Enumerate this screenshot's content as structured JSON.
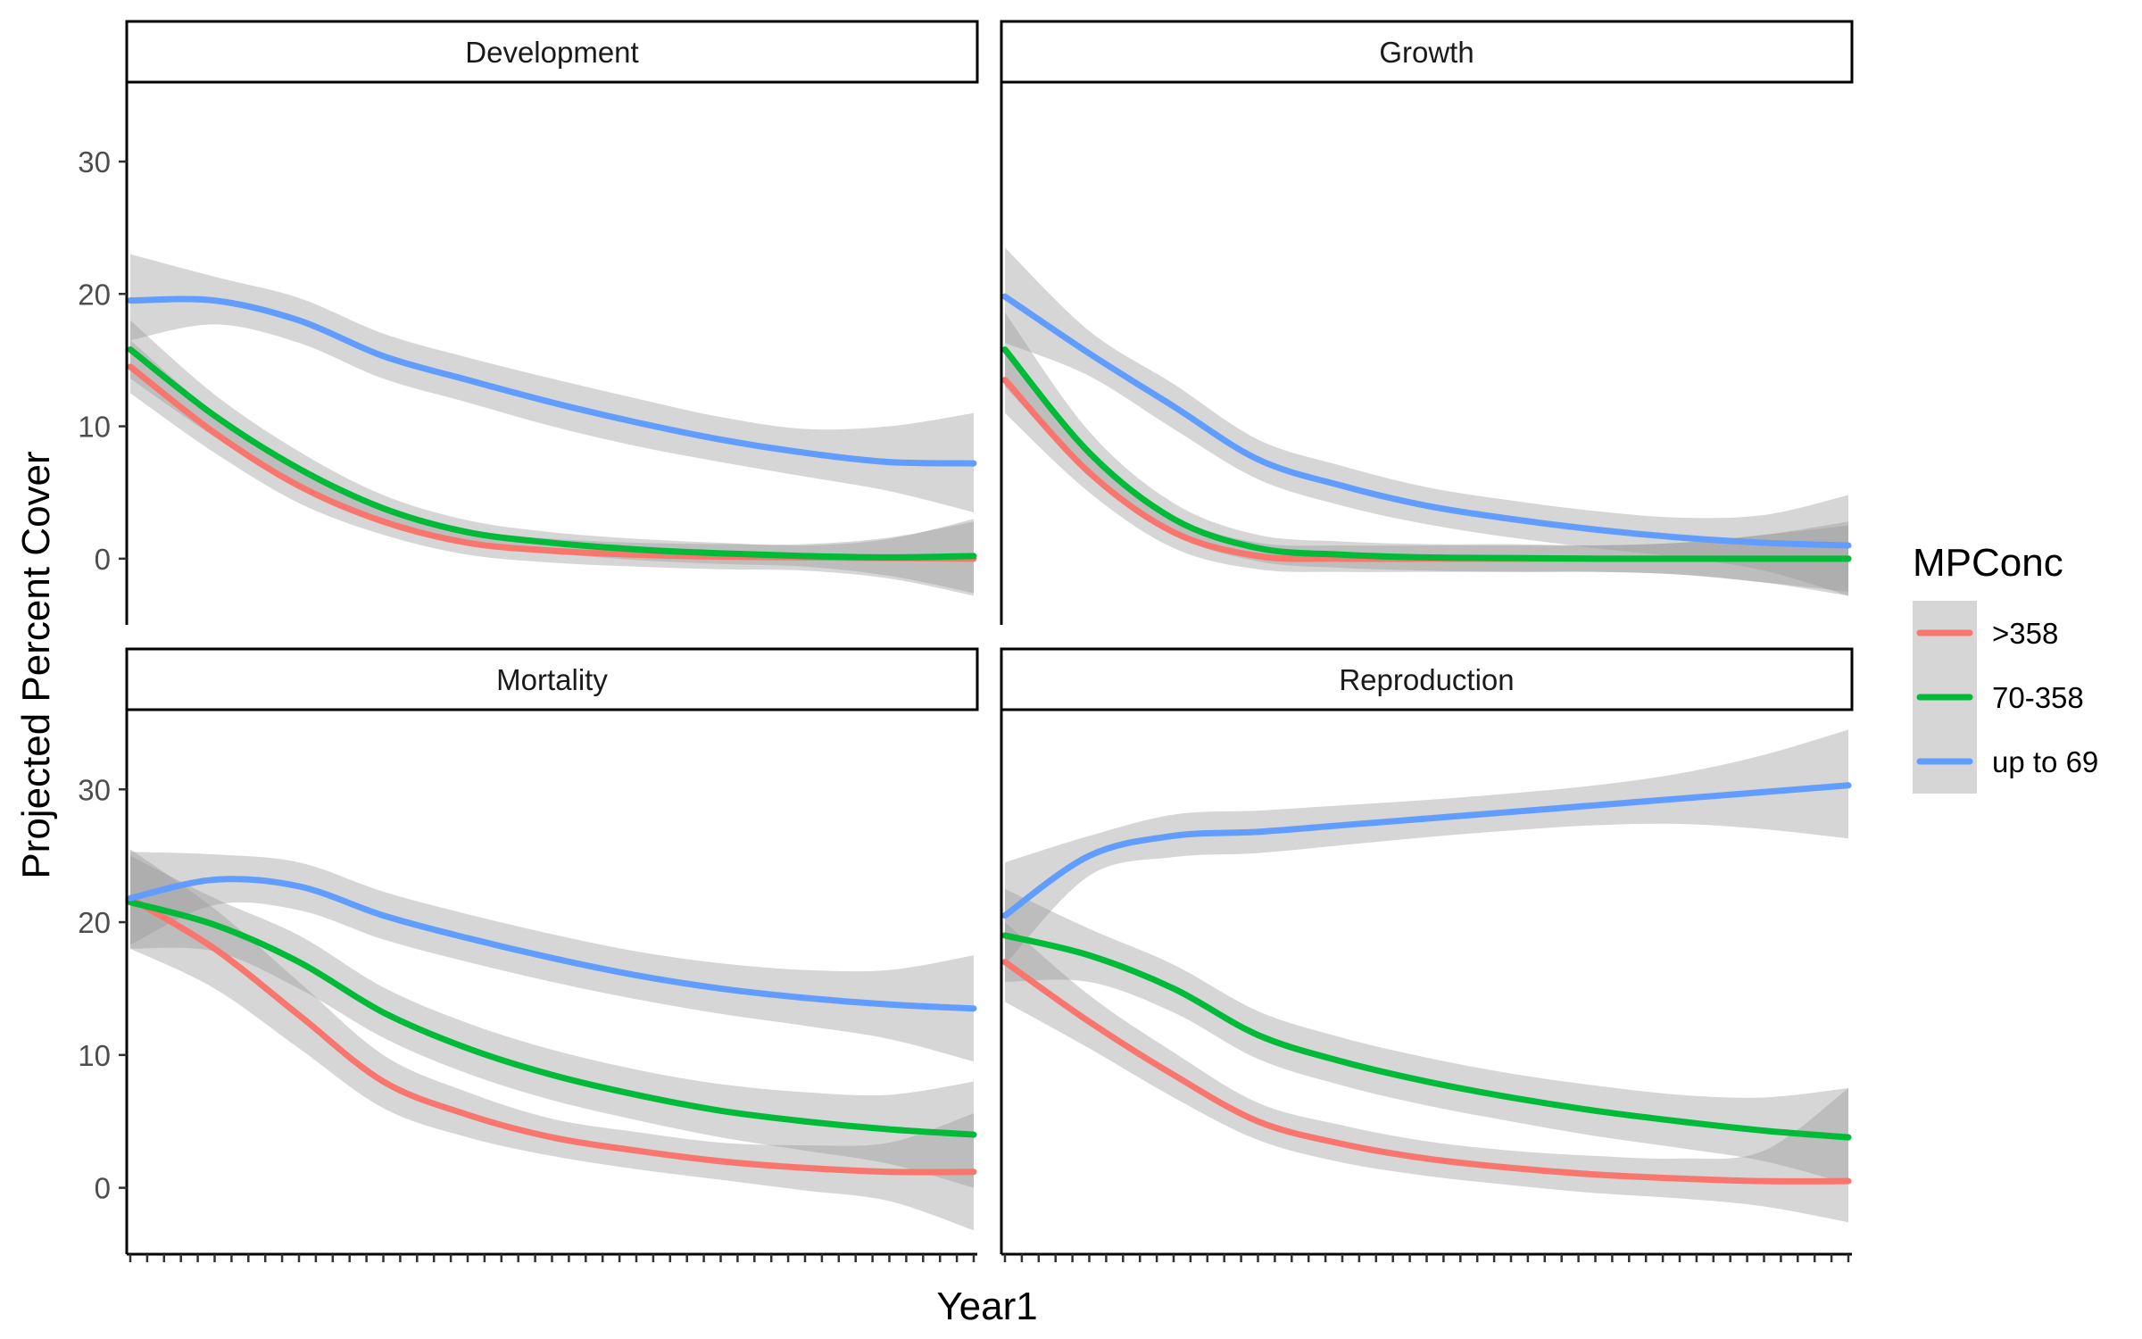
{
  "chart_data": {
    "type": "line",
    "facets": [
      "Development",
      "Growth",
      "Mortality",
      "Reproduction"
    ],
    "xlabel": "Year1",
    "ylabel": "Projected Percent Cover",
    "yticks": [
      0,
      10,
      20,
      30
    ],
    "ylim": [
      -5,
      36
    ],
    "xlim": [
      0,
      1
    ],
    "x_tick_count": 51,
    "grid": false,
    "legend": {
      "title": "MPConc",
      "placement": "right",
      "entries": [
        ">358",
        "70-358",
        "up to 69"
      ]
    },
    "colors": {
      ">358": "#F8766D",
      "70-358": "#00BA38",
      "up to 69": "#619CFF",
      "band": "#999999"
    },
    "panels": [
      {
        "facet": "Development",
        "series": [
          {
            "name": ">358",
            "x": [
              0,
              0.1,
              0.2,
              0.3,
              0.4,
              0.5,
              0.6,
              0.7,
              0.8,
              0.9,
              1.0
            ],
            "y": [
              14.5,
              9.5,
              5.5,
              2.8,
              1.2,
              0.6,
              0.3,
              0.15,
              0.1,
              0.05,
              0.0
            ],
            "lower": [
              12.5,
              8,
              4.2,
              1.8,
              0.3,
              -0.3,
              -0.6,
              -0.8,
              -0.9,
              -1.5,
              -2.8
            ],
            "upper": [
              16.5,
              11,
              6.8,
              3.8,
              2.1,
              1.5,
              1.2,
              1.1,
              1.1,
              1.6,
              2.8
            ]
          },
          {
            "name": "70-358",
            "x": [
              0,
              0.1,
              0.2,
              0.3,
              0.4,
              0.5,
              0.6,
              0.7,
              0.8,
              0.9,
              1.0
            ],
            "y": [
              15.8,
              10.8,
              6.8,
              3.8,
              2.0,
              1.2,
              0.7,
              0.4,
              0.2,
              0.1,
              0.2
            ],
            "lower": [
              13.6,
              9.2,
              5.5,
              2.8,
              1.1,
              0.4,
              -0.1,
              -0.4,
              -0.6,
              -1.3,
              -2.6
            ],
            "upper": [
              18.0,
              12.4,
              8.1,
              4.8,
              2.9,
              2.0,
              1.5,
              1.2,
              1.0,
              1.5,
              3.0
            ]
          },
          {
            "name": "up to 69",
            "x": [
              0,
              0.1,
              0.2,
              0.3,
              0.4,
              0.5,
              0.6,
              0.7,
              0.8,
              0.9,
              1.0
            ],
            "y": [
              19.5,
              19.5,
              18.0,
              15.3,
              13.5,
              11.8,
              10.3,
              9.0,
              8.0,
              7.3,
              7.2
            ],
            "lower": [
              16.5,
              17.7,
              16.3,
              13.6,
              11.8,
              10.0,
              8.5,
              7.3,
              6.2,
              5.1,
              3.5
            ],
            "upper": [
              23.0,
              21.3,
              19.7,
              17.0,
              15.2,
              13.6,
              12.1,
              10.7,
              9.8,
              10.0,
              11.0
            ]
          }
        ]
      },
      {
        "facet": "Growth",
        "series": [
          {
            "name": ">358",
            "x": [
              0,
              0.1,
              0.2,
              0.3,
              0.4,
              0.5,
              0.6,
              0.7,
              0.8,
              0.9,
              1.0
            ],
            "y": [
              13.5,
              6.5,
              2.0,
              0.2,
              0.0,
              0.0,
              0.0,
              0.0,
              0.0,
              0.0,
              0.0
            ],
            "lower": [
              11.0,
              5.0,
              0.8,
              -0.8,
              -1.0,
              -1.0,
              -1.0,
              -1.0,
              -1.2,
              -1.8,
              -2.5
            ],
            "upper": [
              16.0,
              8.0,
              3.2,
              1.2,
              1.0,
              1.0,
              1.0,
              1.0,
              1.2,
              1.8,
              2.5
            ]
          },
          {
            "name": "70-358",
            "x": [
              0,
              0.1,
              0.2,
              0.3,
              0.4,
              0.5,
              0.6,
              0.7,
              0.8,
              0.9,
              1.0
            ],
            "y": [
              15.8,
              8.0,
              3.0,
              0.8,
              0.3,
              0.1,
              0.05,
              0.0,
              0.0,
              0.0,
              0.0
            ],
            "lower": [
              13.0,
              6.4,
              1.8,
              -0.2,
              -0.7,
              -0.9,
              -1.0,
              -1.0,
              -1.2,
              -1.8,
              -2.8
            ],
            "upper": [
              18.6,
              9.6,
              4.2,
              1.8,
              1.3,
              1.1,
              1.1,
              1.0,
              1.2,
              1.8,
              2.8
            ]
          },
          {
            "name": "up to 69",
            "x": [
              0,
              0.1,
              0.2,
              0.3,
              0.4,
              0.5,
              0.6,
              0.7,
              0.8,
              0.9,
              1.0
            ],
            "y": [
              19.8,
              15.5,
              11.5,
              7.5,
              5.5,
              4.0,
              3.0,
              2.2,
              1.6,
              1.2,
              1.0
            ],
            "lower": [
              16.3,
              13.8,
              9.8,
              6.0,
              4.0,
              2.6,
              1.6,
              0.8,
              0.1,
              -0.9,
              -2.8
            ],
            "upper": [
              23.5,
              17.2,
              13.2,
              9.0,
              7.0,
              5.4,
              4.4,
              3.6,
              3.1,
              3.3,
              4.8
            ]
          }
        ]
      },
      {
        "facet": "Mortality",
        "series": [
          {
            "name": ">358",
            "x": [
              0,
              0.1,
              0.2,
              0.3,
              0.4,
              0.5,
              0.6,
              0.7,
              0.8,
              0.9,
              1.0
            ],
            "y": [
              21.8,
              18.0,
              13.0,
              8.0,
              5.5,
              3.8,
              2.8,
              2.0,
              1.5,
              1.2,
              1.2
            ],
            "lower": [
              18.0,
              15.0,
              10.5,
              6.0,
              3.8,
              2.4,
              1.4,
              0.6,
              -0.2,
              -1.0,
              -3.2
            ],
            "upper": [
              25.5,
              21.0,
              15.5,
              10.0,
              7.2,
              5.2,
              4.2,
              3.4,
              3.2,
              3.4,
              5.6
            ]
          },
          {
            "name": "70-358",
            "x": [
              0,
              0.1,
              0.2,
              0.3,
              0.4,
              0.5,
              0.6,
              0.7,
              0.8,
              0.9,
              1.0
            ],
            "y": [
              21.5,
              19.8,
              17.0,
              13.2,
              10.5,
              8.5,
              7.0,
              5.8,
              5.0,
              4.4,
              4.0
            ],
            "lower": [
              18.0,
              17.8,
              15.0,
              11.3,
              8.6,
              6.6,
              5.1,
              3.8,
              2.8,
              1.8,
              0.0
            ],
            "upper": [
              25.0,
              21.8,
              19.0,
              15.1,
              12.4,
              10.4,
              8.9,
              7.8,
              7.2,
              7.0,
              8.0
            ]
          },
          {
            "name": "up to 69",
            "x": [
              0,
              0.1,
              0.2,
              0.3,
              0.4,
              0.5,
              0.6,
              0.7,
              0.8,
              0.9,
              1.0
            ],
            "y": [
              21.8,
              23.2,
              22.7,
              20.5,
              18.8,
              17.3,
              16.0,
              15.0,
              14.3,
              13.8,
              13.5
            ],
            "lower": [
              18.3,
              21.3,
              20.9,
              18.7,
              17.0,
              15.5,
              14.2,
              13.1,
              12.2,
              11.2,
              9.5
            ],
            "upper": [
              25.3,
              25.1,
              24.5,
              22.3,
              20.6,
              19.1,
              17.8,
              16.9,
              16.4,
              16.4,
              17.5
            ]
          }
        ]
      },
      {
        "facet": "Reproduction",
        "series": [
          {
            "name": ">358",
            "x": [
              0,
              0.1,
              0.2,
              0.3,
              0.4,
              0.5,
              0.6,
              0.7,
              0.8,
              0.9,
              1.0
            ],
            "y": [
              17.0,
              12.5,
              8.5,
              5.0,
              3.3,
              2.2,
              1.5,
              1.0,
              0.7,
              0.5,
              0.5
            ],
            "lower": [
              14.0,
              10.5,
              6.8,
              3.6,
              1.9,
              0.9,
              0.2,
              -0.4,
              -0.8,
              -1.4,
              -2.6
            ],
            "upper": [
              20.0,
              14.5,
              10.2,
              6.4,
              4.7,
              3.5,
              2.8,
              2.4,
              2.2,
              2.8,
              7.5
            ]
          },
          {
            "name": "70-358",
            "x": [
              0,
              0.1,
              0.2,
              0.3,
              0.4,
              0.5,
              0.6,
              0.7,
              0.8,
              0.9,
              1.0
            ],
            "y": [
              19.0,
              17.5,
              15.0,
              11.5,
              9.5,
              8.0,
              6.8,
              5.8,
              5.0,
              4.3,
              3.8
            ],
            "lower": [
              15.5,
              15.5,
              13.2,
              9.7,
              7.7,
              6.2,
              5.0,
              3.9,
              3.0,
              2.0,
              0.3
            ],
            "upper": [
              22.5,
              19.5,
              16.8,
              13.3,
              11.3,
              9.8,
              8.6,
              7.7,
              7.0,
              6.8,
              7.5
            ]
          },
          {
            "name": "up to 69",
            "x": [
              0,
              0.1,
              0.2,
              0.3,
              0.4,
              0.5,
              0.6,
              0.7,
              0.8,
              0.9,
              1.0
            ],
            "y": [
              20.5,
              25.0,
              26.5,
              26.8,
              27.3,
              27.8,
              28.3,
              28.8,
              29.3,
              29.8,
              30.3
            ],
            "lower": [
              16.8,
              23.5,
              24.9,
              25.2,
              25.8,
              26.4,
              26.9,
              27.3,
              27.4,
              27.0,
              26.3
            ],
            "upper": [
              24.5,
              26.5,
              28.1,
              28.4,
              28.8,
              29.2,
              29.7,
              30.3,
              31.2,
              32.6,
              34.5
            ]
          }
        ]
      }
    ]
  }
}
